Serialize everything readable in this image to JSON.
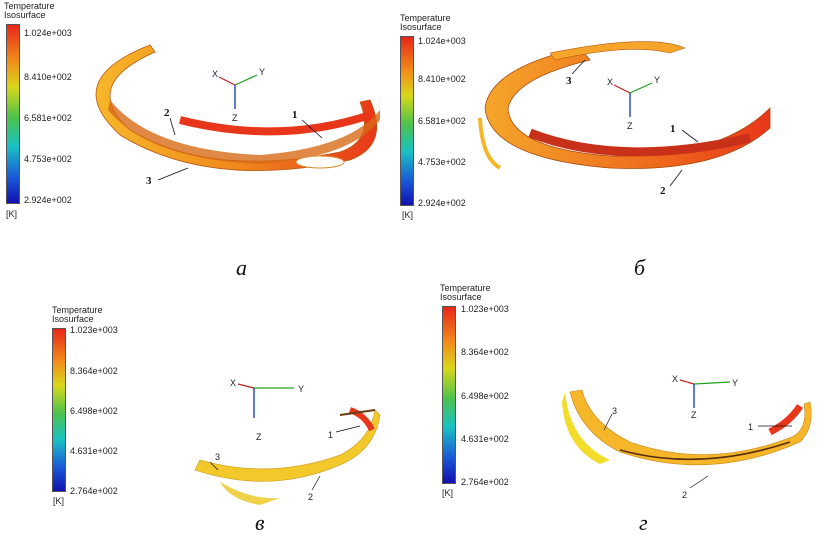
{
  "legend": {
    "title": "Temperature\nIsosurface",
    "unit": "[K]"
  },
  "panels": [
    {
      "id": "a",
      "caption": "а",
      "ticks": [
        "1.024e+003",
        "8.410e+002",
        "6.581e+002",
        "4.753e+002",
        "2.924e+002"
      ],
      "labels": [
        "1",
        "2",
        "3"
      ]
    },
    {
      "id": "b",
      "caption": "б",
      "ticks": [
        "1.024e+003",
        "8.410e+002",
        "6.581e+002",
        "4.753e+002",
        "2.924e+002"
      ],
      "labels": [
        "1",
        "2",
        "3"
      ]
    },
    {
      "id": "v",
      "caption": "в",
      "ticks": [
        "1.023e+003",
        "8.364e+002",
        "6.498e+002",
        "4.631e+002",
        "2.764e+002"
      ],
      "labels": [
        "1",
        "2",
        "3"
      ]
    },
    {
      "id": "g",
      "caption": "г",
      "ticks": [
        "1.023e+003",
        "8.364e+002",
        "6.498e+002",
        "4.631e+002",
        "2.764e+002"
      ],
      "labels": [
        "1",
        "2",
        "3"
      ]
    }
  ],
  "axes": {
    "x": "X",
    "y": "Y",
    "z": "Z"
  },
  "colors": {
    "hot": "#e8361a",
    "warm": "#f39a1c",
    "mid": "#f6b62a",
    "yellow": "#f4dc2a"
  }
}
